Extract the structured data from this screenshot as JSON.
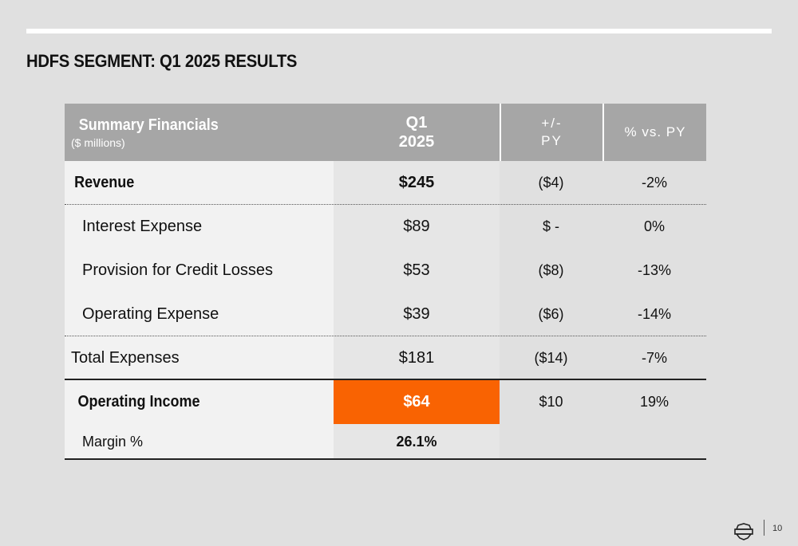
{
  "slide": {
    "title": "HDFS SEGMENT: Q1 2025 RESULTS",
    "page_number": "10"
  },
  "table": {
    "header": {
      "title": "Summary Financials",
      "subtitle": "($ millions)",
      "col2_line1": "Q1",
      "col2_line2": "2025",
      "col3_line1": "+/-",
      "col3_line2": "PY",
      "col4": "% vs. PY"
    },
    "rows": [
      {
        "label": "Revenue",
        "q1_2025": "$245",
        "change": "($4)",
        "pct": "-2%"
      },
      {
        "label": "Interest Expense",
        "q1_2025": "$89",
        "change": "$ -",
        "pct": "0%"
      },
      {
        "label": "Provision for Credit Losses",
        "q1_2025": "$53",
        "change": "($8)",
        "pct": "-13%"
      },
      {
        "label": "Operating Expense",
        "q1_2025": "$39",
        "change": "($6)",
        "pct": "-14%"
      },
      {
        "label": "Total Expenses",
        "q1_2025": "$181",
        "change": "($14)",
        "pct": "-7%"
      },
      {
        "label": "Operating Income",
        "q1_2025": "$64",
        "change": "$10",
        "pct": "19%"
      },
      {
        "label": "Margin %",
        "q1_2025": "26.1%"
      }
    ]
  },
  "colors": {
    "highlight": "#f96302",
    "header_bg": "#a6a6a6",
    "page_bg": "#e0e0e0"
  },
  "icons": {
    "footer_logo": "bar-and-shield-logo-icon"
  }
}
